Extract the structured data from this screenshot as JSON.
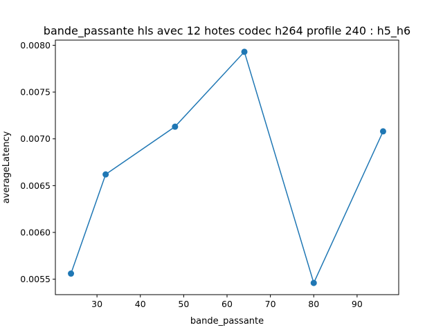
{
  "chart_data": {
    "type": "line",
    "title": "bande_passante hls avec 12 hotes codec h264 profile 240 : h5_h6",
    "xlabel": "bande_passante",
    "ylabel": "averageLatency",
    "xlim": [
      20.4,
      99.6
    ],
    "ylim": [
      0.005335,
      0.008055
    ],
    "x_ticks": [
      30,
      40,
      50,
      60,
      70,
      80,
      90
    ],
    "x_tick_labels": [
      "30",
      "40",
      "50",
      "60",
      "70",
      "80",
      "90"
    ],
    "y_ticks": [
      0.0055,
      0.006,
      0.0065,
      0.007,
      0.0075,
      0.008
    ],
    "y_tick_labels": [
      "0.0055",
      "0.0060",
      "0.0065",
      "0.0070",
      "0.0075",
      "0.0080"
    ],
    "grid": false,
    "series": [
      {
        "color": "#1f77b4",
        "marker": "circle",
        "x": [
          24,
          32,
          48,
          64,
          80,
          96
        ],
        "y": [
          0.00556,
          0.00662,
          0.00713,
          0.00793,
          0.00546,
          0.00708
        ]
      }
    ]
  }
}
